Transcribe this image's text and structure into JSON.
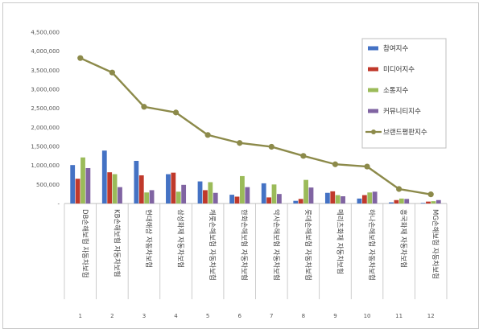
{
  "chart_data": {
    "type": "bar",
    "categories": [
      "DB손해보험 자동차보험",
      "KB손해보험 자동차보험",
      "현대해상 자동차보험",
      "삼성화재 자동차보험",
      "캐롯손해보험 자동차보험",
      "한화손해보험 자동차보험",
      "악사손해보험 자동차보험",
      "롯데손해보험 자동차보험",
      "메리츠화재 자동차보험",
      "하나손해보험 자동차보험",
      "흥국화재 자동차보험",
      "MG손해보험 자동차보험"
    ],
    "category_numbers": [
      "1",
      "2",
      "3",
      "4",
      "5",
      "6",
      "7",
      "8",
      "9",
      "10",
      "11",
      "12"
    ],
    "series": [
      {
        "name": "참여지수",
        "type": "bar",
        "color": "#4472c4",
        "values": [
          1010000,
          1390000,
          1120000,
          770000,
          580000,
          230000,
          530000,
          70000,
          280000,
          130000,
          30000,
          15000
        ]
      },
      {
        "name": "미디어지수",
        "type": "bar",
        "color": "#c0392b",
        "values": [
          650000,
          820000,
          740000,
          810000,
          350000,
          180000,
          160000,
          120000,
          320000,
          220000,
          90000,
          50000
        ]
      },
      {
        "name": "소통지수",
        "type": "bar",
        "color": "#9bbb59",
        "values": [
          1210000,
          770000,
          290000,
          310000,
          560000,
          720000,
          500000,
          620000,
          220000,
          290000,
          130000,
          60000
        ]
      },
      {
        "name": "커뮤니티지수",
        "type": "bar",
        "color": "#8064a2",
        "values": [
          930000,
          430000,
          350000,
          490000,
          280000,
          430000,
          250000,
          420000,
          190000,
          310000,
          120000,
          90000
        ]
      },
      {
        "name": "브랜드평판지수",
        "type": "line",
        "color": "#8c8a4a",
        "values": [
          3820000,
          3440000,
          2540000,
          2390000,
          1800000,
          1590000,
          1490000,
          1250000,
          1030000,
          970000,
          380000,
          240000
        ]
      }
    ],
    "ylim": [
      0,
      4500000
    ],
    "yticks": [
      "-",
      "500,000",
      "1,000,000",
      "1,500,000",
      "2,000,000",
      "2,500,000",
      "3,000,000",
      "3,500,000",
      "4,000,000",
      "4,500,000"
    ],
    "legend_position": "top-right",
    "grid": false
  },
  "colors": {
    "axis": "#bfbfbf",
    "marker_fill": "#8c8a4a"
  }
}
